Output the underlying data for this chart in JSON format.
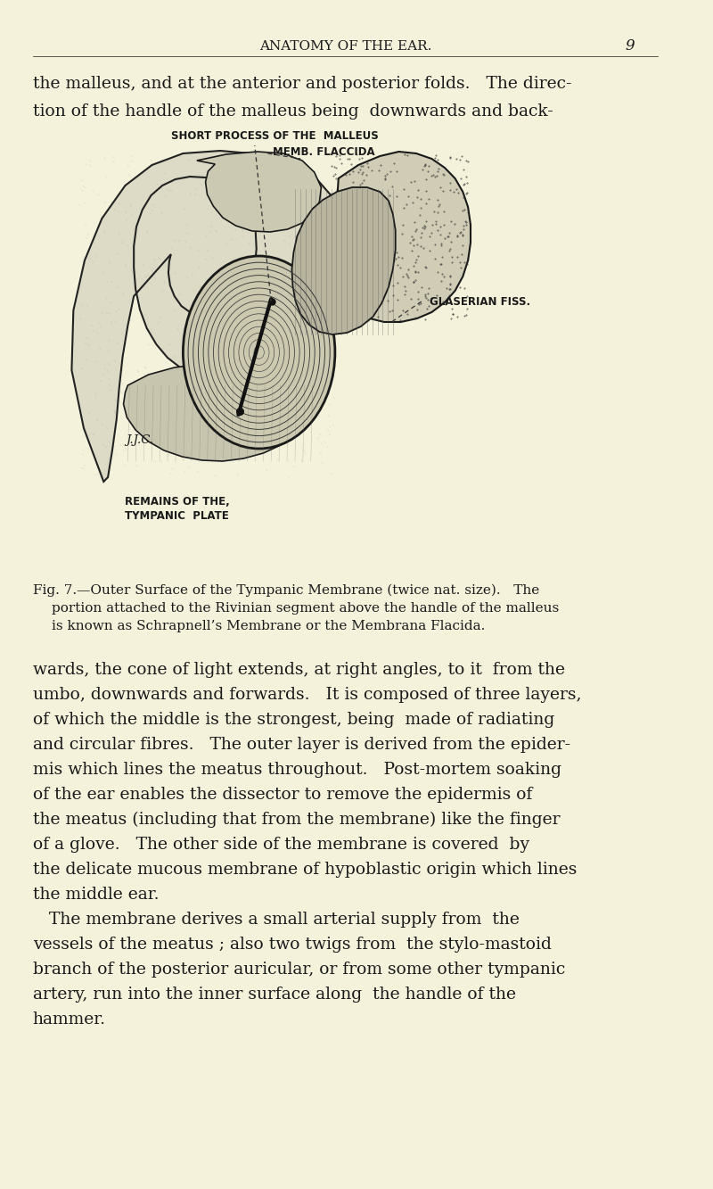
{
  "bg_color": "#f5f2dc",
  "page_title": "ANATOMY OF THE EAR.",
  "page_number": "9",
  "top_text_line1": "the malleus, and at the anterior and posterior folds.   The direc-",
  "top_text_line2": "tion of the handle of the malleus being  downwards and back-",
  "fig_label_short_process": "SHORT PROCESS OF THE  MALLEUS",
  "fig_label_memb": "MEMB. FLACCIDA",
  "fig_label_glaserian": "GLASERIAN FISS.",
  "fig_label_remains": "REMAINS OF THE,",
  "fig_label_tympanic": "TYMPANIC  PLATE",
  "fig_label_jjc": "J.J.C.",
  "fig_caption_line1": "Fig. 7.—Outer Surface of the Tympanic Membrane (twice nat. size).   The",
  "fig_caption_line2": "portion attached to the Rivinian segment above the handle of the malleus",
  "fig_caption_line3": "is known as Schrapnell’s Membrane or the Membrana Flacida.",
  "body_text": [
    "wards, the cone of light extends, at right angles, to it  from the",
    "umbo, downwards and forwards.   It is composed of three layers,",
    "of which the middle is the strongest, being  made of radiating",
    "and circular fibres.   The outer layer is derived from the epider-",
    "mis which lines the meatus throughout.   Post-mortem soaking",
    "of the ear enables the dissector to remove the epidermis of",
    "the meatus (including that from the membrane) like the finger",
    "of a glove.   The other side of the membrane is covered  by",
    "the delicate mucous membrane of hypoblastic origin which lines",
    "the middle ear.",
    "   The membrane derives a small arterial supply from  the",
    "vessels of the meatus ; also two twigs from  the stylo-mastoid",
    "branch of the posterior auricular, or from some other tympanic",
    "artery, run into the inner surface along  the handle of the",
    "hammer."
  ],
  "text_color": "#1a1a1a"
}
